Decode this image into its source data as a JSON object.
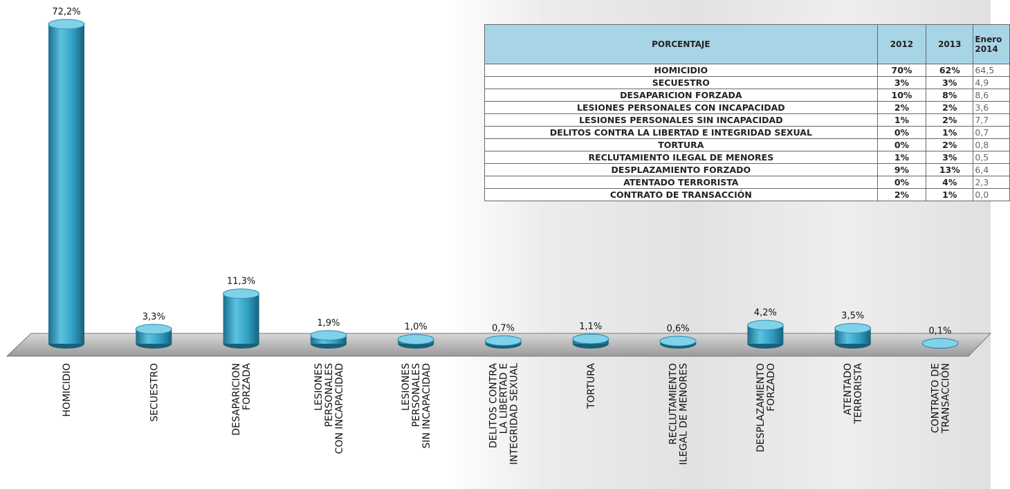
{
  "chart_data": {
    "type": "bar",
    "categories": [
      "HOMICIDIO",
      "SECUESTRO",
      "DESAPARICION\nFORZADA",
      "LESIONES\nPERSONALES\nCON INCAPACIDAD",
      "LESIONES\nPERSONALES\nSIN INCAPACIDAD",
      "DELITOS CONTRA\nLA LIBERTAD E\nINTEGRIDAD SEXUAL",
      "TORTURA",
      "RECLUTAMIENTO\nILEGAL DE MENORES",
      "DESPLAZAMIENTO\nFORZADO",
      "ATENTADO\nTERRORISTA",
      "CONTRATO DE\nTRANSACCIÓN"
    ],
    "values": [
      72.2,
      3.3,
      11.3,
      1.9,
      1.0,
      0.7,
      1.1,
      0.6,
      4.2,
      3.5,
      0.1
    ],
    "value_labels": [
      "72,2%",
      "3,3%",
      "11,3%",
      "1,9%",
      "1,0%",
      "0,7%",
      "1,1%",
      "0,6%",
      "4,2%",
      "3,5%",
      "0,1%"
    ],
    "color": "#2e9cc0"
  },
  "table": {
    "header": [
      "PORCENTAJE",
      "2012",
      "2013",
      "Enero 2014"
    ],
    "rows": [
      [
        "HOMICIDIO",
        "70%",
        "62%",
        "64,5"
      ],
      [
        "SECUESTRO",
        "3%",
        "3%",
        "4,9"
      ],
      [
        "DESAPARICION FORZADA",
        "10%",
        "8%",
        "8,6"
      ],
      [
        "LESIONES PERSONALES CON INCAPACIDAD",
        "2%",
        "2%",
        "3,6"
      ],
      [
        "LESIONES PERSONALES SIN INCAPACIDAD",
        "1%",
        "2%",
        "7,7"
      ],
      [
        "DELITOS CONTRA LA LIBERTAD E INTEGRIDAD SEXUAL",
        "0%",
        "1%",
        "0,7"
      ],
      [
        "TORTURA",
        "0%",
        "2%",
        "0,8"
      ],
      [
        "RECLUTAMIENTO ILEGAL DE MENORES",
        "1%",
        "3%",
        "0,5"
      ],
      [
        "DESPLAZAMIENTO FORZADO",
        "9%",
        "13%",
        "6,4"
      ],
      [
        "ATENTADO TERRORISTA",
        "0%",
        "4%",
        "2,3"
      ],
      [
        "CONTRATO DE TRANSACCIÓN",
        "2%",
        "1%",
        "0,0"
      ]
    ]
  }
}
